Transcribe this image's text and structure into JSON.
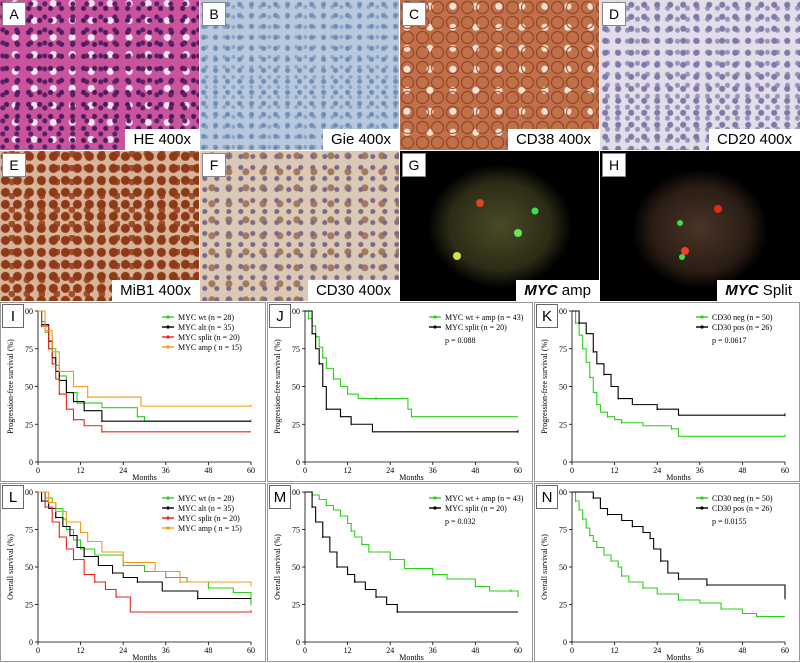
{
  "tiles": [
    {
      "letter": "A",
      "label": "HE 400x"
    },
    {
      "letter": "B",
      "label": "Gie 400x"
    },
    {
      "letter": "C",
      "label": "CD38 400x"
    },
    {
      "letter": "D",
      "label": "CD20 400x"
    },
    {
      "letter": "E",
      "label": "MiB1 400x"
    },
    {
      "letter": "F",
      "label": "CD30 400x"
    },
    {
      "letter": "G",
      "label_italic": "MYC",
      "label_rest": " amp"
    },
    {
      "letter": "H",
      "label_italic": "MYC",
      "label_rest": " Split"
    }
  ],
  "colors": {
    "green": "#2ccf1a",
    "black": "#000000",
    "red": "#e8231c",
    "orange": "#f19a15"
  },
  "chart_data": [
    {
      "letter": "I",
      "type": "line",
      "ylabel": "Progression-free survival (%)",
      "xlabel": "Months",
      "xticks": [
        "0",
        "12",
        "24",
        "36",
        "48",
        "60"
      ],
      "yticks": [
        "0",
        "25",
        "50",
        "75",
        "100"
      ],
      "xlim": [
        0,
        60
      ],
      "ylim": [
        0,
        100
      ],
      "legend_position": "top-right",
      "series": [
        {
          "name": "MYC wt (n = 28)",
          "color": "#2ccf1a",
          "points": [
            [
              0,
              100
            ],
            [
              1,
              93
            ],
            [
              2,
              86
            ],
            [
              3,
              75
            ],
            [
              5,
              64
            ],
            [
              6,
              57
            ],
            [
              8,
              46
            ],
            [
              11,
              39
            ],
            [
              18,
              36
            ],
            [
              28,
              30
            ],
            [
              30,
              27
            ],
            [
              60,
              27
            ]
          ]
        },
        {
          "name": "MYC alt (n = 35)",
          "color": "#000000",
          "points": [
            [
              0,
              100
            ],
            [
              1,
              91
            ],
            [
              3,
              80
            ],
            [
              4,
              69
            ],
            [
              5,
              60
            ],
            [
              6,
              54
            ],
            [
              8,
              46
            ],
            [
              10,
              40
            ],
            [
              13,
              34
            ],
            [
              18,
              27
            ],
            [
              60,
              27
            ]
          ]
        },
        {
          "name": "MYC split (n = 20)",
          "color": "#e8231c",
          "points": [
            [
              0,
              100
            ],
            [
              1,
              90
            ],
            [
              3,
              75
            ],
            [
              4,
              65
            ],
            [
              5,
              55
            ],
            [
              6,
              45
            ],
            [
              8,
              35
            ],
            [
              10,
              28
            ],
            [
              13,
              24
            ],
            [
              18,
              20
            ],
            [
              60,
              20
            ]
          ]
        },
        {
          "name": "MYC amp ( n = 15)",
          "color": "#f19a15",
          "points": [
            [
              0,
              100
            ],
            [
              2,
              87
            ],
            [
              4,
              73
            ],
            [
              6,
              60
            ],
            [
              10,
              50
            ],
            [
              14,
              43
            ],
            [
              29,
              37
            ],
            [
              60,
              37
            ]
          ]
        }
      ],
      "annotation": ""
    },
    {
      "letter": "J",
      "type": "line",
      "ylabel": "Progression-free survival (%)",
      "xlabel": "Months",
      "xticks": [
        "0",
        "12",
        "24",
        "36",
        "48",
        "60"
      ],
      "yticks": [
        "0",
        "25",
        "50",
        "75",
        "100"
      ],
      "xlim": [
        0,
        60
      ],
      "ylim": [
        0,
        100
      ],
      "legend_position": "top-right",
      "series": [
        {
          "name": "MYC wt + amp (n = 43)",
          "color": "#2ccf1a",
          "points": [
            [
              0,
              100
            ],
            [
              1,
              95
            ],
            [
              2,
              90
            ],
            [
              3,
              83
            ],
            [
              4,
              76
            ],
            [
              5,
              69
            ],
            [
              6,
              62
            ],
            [
              8,
              55
            ],
            [
              10,
              50
            ],
            [
              12,
              45
            ],
            [
              15,
              42
            ],
            [
              20,
              42
            ],
            [
              29,
              35
            ],
            [
              30,
              30
            ],
            [
              60,
              30
            ]
          ]
        },
        {
          "name": "MYC split (n = 20)",
          "color": "#000000",
          "points": [
            [
              0,
              100
            ],
            [
              2,
              85
            ],
            [
              3,
              75
            ],
            [
              4,
              65
            ],
            [
              5,
              50
            ],
            [
              6,
              35
            ],
            [
              10,
              30
            ],
            [
              13,
              25
            ],
            [
              19,
              20
            ],
            [
              60,
              20
            ]
          ]
        }
      ],
      "annotation": "p = 0.088"
    },
    {
      "letter": "K",
      "type": "line",
      "ylabel": "Progression-free survival (%)",
      "xlabel": "Months",
      "xticks": [
        "0",
        "12",
        "24",
        "36",
        "48",
        "60"
      ],
      "yticks": [
        "0",
        "25",
        "50",
        "75",
        "100"
      ],
      "xlim": [
        0,
        60
      ],
      "ylim": [
        0,
        100
      ],
      "legend_position": "top-right",
      "series": [
        {
          "name": "CD30 neg (n = 50)",
          "color": "#2ccf1a",
          "points": [
            [
              0,
              100
            ],
            [
              1,
              92
            ],
            [
              2,
              84
            ],
            [
              3,
              75
            ],
            [
              4,
              66
            ],
            [
              5,
              56
            ],
            [
              6,
              46
            ],
            [
              7,
              38
            ],
            [
              8,
              33
            ],
            [
              10,
              30
            ],
            [
              12,
              28
            ],
            [
              14,
              26
            ],
            [
              20,
              24
            ],
            [
              28,
              22
            ],
            [
              30,
              17
            ],
            [
              60,
              17
            ]
          ]
        },
        {
          "name": "CD30 pos (n = 26)",
          "color": "#000000",
          "points": [
            [
              0,
              100
            ],
            [
              2,
              92
            ],
            [
              4,
              85
            ],
            [
              6,
              73
            ],
            [
              7,
              65
            ],
            [
              9,
              58
            ],
            [
              11,
              50
            ],
            [
              13,
              42
            ],
            [
              17,
              38
            ],
            [
              24,
              35
            ],
            [
              30,
              31
            ],
            [
              60,
              31
            ]
          ]
        }
      ],
      "annotation": "p = 0.0617"
    },
    {
      "letter": "L",
      "type": "line",
      "ylabel": "Overall survival (%)",
      "xlabel": "Months",
      "xticks": [
        "0",
        "12",
        "24",
        "36",
        "48",
        "60"
      ],
      "yticks": [
        "0",
        "25",
        "50",
        "75",
        "100"
      ],
      "xlim": [
        0,
        60
      ],
      "ylim": [
        0,
        100
      ],
      "legend_position": "top-right",
      "series": [
        {
          "name": "MYC wt (n = 28)",
          "color": "#2ccf1a",
          "points": [
            [
              0,
              100
            ],
            [
              2,
              96
            ],
            [
              4,
              93
            ],
            [
              5,
              89
            ],
            [
              7,
              82
            ],
            [
              8,
              75
            ],
            [
              10,
              68
            ],
            [
              12,
              62
            ],
            [
              16,
              58
            ],
            [
              24,
              51
            ],
            [
              30,
              47
            ],
            [
              36,
              43
            ],
            [
              42,
              40
            ],
            [
              48,
              36
            ],
            [
              55,
              33
            ],
            [
              60,
              25
            ]
          ]
        },
        {
          "name": "MYC alt (n = 35)",
          "color": "#000000",
          "points": [
            [
              0,
              100
            ],
            [
              1,
              94
            ],
            [
              3,
              89
            ],
            [
              5,
              83
            ],
            [
              7,
              77
            ],
            [
              9,
              71
            ],
            [
              11,
              63
            ],
            [
              13,
              57
            ],
            [
              17,
              51
            ],
            [
              21,
              46
            ],
            [
              24,
              43
            ],
            [
              28,
              40
            ],
            [
              35,
              34
            ],
            [
              45,
              29
            ],
            [
              60,
              29
            ]
          ]
        },
        {
          "name": "MYC split (n = 20)",
          "color": "#e8231c",
          "points": [
            [
              0,
              100
            ],
            [
              2,
              90
            ],
            [
              4,
              80
            ],
            [
              6,
              70
            ],
            [
              8,
              62
            ],
            [
              10,
              55
            ],
            [
              13,
              45
            ],
            [
              16,
              40
            ],
            [
              19,
              35
            ],
            [
              22,
              30
            ],
            [
              26,
              20
            ],
            [
              60,
              20
            ]
          ]
        },
        {
          "name": "MYC amp ( n = 15)",
          "color": "#f19a15",
          "points": [
            [
              0,
              100
            ],
            [
              3,
              93
            ],
            [
              5,
              87
            ],
            [
              8,
              80
            ],
            [
              12,
              73
            ],
            [
              14,
              67
            ],
            [
              18,
              60
            ],
            [
              24,
              53
            ],
            [
              33,
              47
            ],
            [
              40,
              40
            ],
            [
              60,
              37
            ]
          ]
        }
      ],
      "annotation": ""
    },
    {
      "letter": "M",
      "type": "line",
      "ylabel": "Overall survival (%)",
      "xlabel": "Months",
      "xticks": [
        "0",
        "12",
        "24",
        "36",
        "48",
        "60"
      ],
      "yticks": [
        "0",
        "25",
        "50",
        "75",
        "100"
      ],
      "xlim": [
        0,
        60
      ],
      "ylim": [
        0,
        100
      ],
      "legend_position": "top-right",
      "series": [
        {
          "name": "MYC wt + amp (n = 43)",
          "color": "#2ccf1a",
          "points": [
            [
              0,
              100
            ],
            [
              2,
              98
            ],
            [
              4,
              95
            ],
            [
              6,
              91
            ],
            [
              8,
              88
            ],
            [
              10,
              84
            ],
            [
              12,
              79
            ],
            [
              13,
              74
            ],
            [
              14,
              70
            ],
            [
              16,
              65
            ],
            [
              18,
              60
            ],
            [
              24,
              55
            ],
            [
              28,
              49
            ],
            [
              36,
              45
            ],
            [
              40,
              42
            ],
            [
              48,
              37
            ],
            [
              52,
              34
            ],
            [
              58,
              34
            ],
            [
              60,
              30
            ]
          ]
        },
        {
          "name": "MYC split (n = 20)",
          "color": "#000000",
          "points": [
            [
              0,
              100
            ],
            [
              2,
              90
            ],
            [
              3,
              80
            ],
            [
              5,
              70
            ],
            [
              7,
              60
            ],
            [
              9,
              50
            ],
            [
              12,
              45
            ],
            [
              14,
              40
            ],
            [
              17,
              35
            ],
            [
              20,
              30
            ],
            [
              23,
              25
            ],
            [
              26,
              20
            ],
            [
              60,
              20
            ]
          ]
        }
      ],
      "annotation": "p = 0.032"
    },
    {
      "letter": "N",
      "type": "line",
      "ylabel": "Overall survival (%)",
      "xlabel": "Months",
      "xticks": [
        "0",
        "12",
        "24",
        "36",
        "48",
        "60"
      ],
      "yticks": [
        "0",
        "25",
        "50",
        "75",
        "100"
      ],
      "xlim": [
        0,
        60
      ],
      "ylim": [
        0,
        100
      ],
      "legend_position": "top-right",
      "series": [
        {
          "name": "CD30 neg (n = 50)",
          "color": "#2ccf1a",
          "points": [
            [
              0,
              100
            ],
            [
              1,
              94
            ],
            [
              2,
              88
            ],
            [
              3,
              82
            ],
            [
              4,
              76
            ],
            [
              5,
              71
            ],
            [
              6,
              67
            ],
            [
              7,
              63
            ],
            [
              9,
              58
            ],
            [
              11,
              54
            ],
            [
              13,
              50
            ],
            [
              14,
              44
            ],
            [
              16,
              40
            ],
            [
              20,
              36
            ],
            [
              24,
              32
            ],
            [
              30,
              28
            ],
            [
              36,
              26
            ],
            [
              42,
              22
            ],
            [
              48,
              19
            ],
            [
              52,
              17
            ],
            [
              60,
              17
            ]
          ]
        },
        {
          "name": "CD30 pos (n = 26)",
          "color": "#000000",
          "points": [
            [
              0,
              100
            ],
            [
              6,
              96
            ],
            [
              8,
              89
            ],
            [
              10,
              85
            ],
            [
              14,
              81
            ],
            [
              17,
              77
            ],
            [
              20,
              73
            ],
            [
              22,
              69
            ],
            [
              23,
              62
            ],
            [
              25,
              54
            ],
            [
              27,
              46
            ],
            [
              30,
              42
            ],
            [
              36,
              42
            ],
            [
              38,
              38
            ],
            [
              58,
              38
            ],
            [
              60,
              29
            ]
          ]
        }
      ],
      "annotation": "p = 0.0155"
    }
  ]
}
